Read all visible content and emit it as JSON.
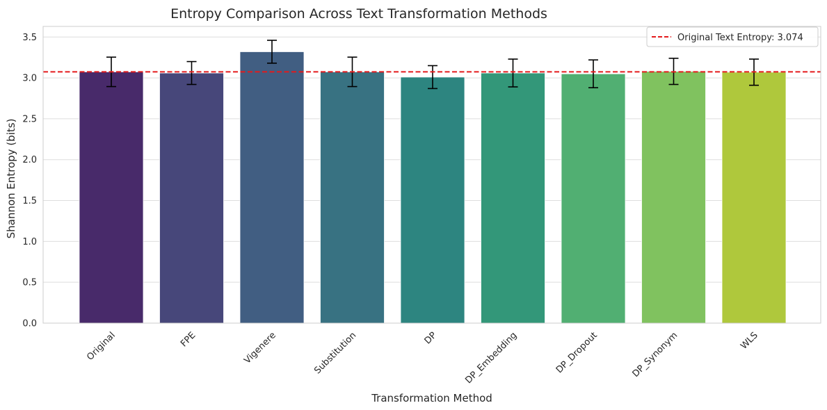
{
  "chart_data": {
    "type": "bar",
    "title": "Entropy Comparison Across Text Transformation Methods",
    "xlabel": "Transformation Method",
    "ylabel": "Shannon Entropy (bits)",
    "ylim": [
      0,
      3.63
    ],
    "yticks": [
      0.0,
      0.5,
      1.0,
      1.5,
      2.0,
      2.5,
      3.0,
      3.5
    ],
    "ytick_labels": [
      "0.0",
      "0.5",
      "1.0",
      "1.5",
      "2.0",
      "2.5",
      "3.0",
      "3.5"
    ],
    "grid": true,
    "categories": [
      "Original",
      "FPE",
      "Vigenere",
      "Substitution",
      "DP",
      "DP_Embedding",
      "DP_Dropout",
      "DP_Synonym",
      "WLS"
    ],
    "values": [
      3.074,
      3.06,
      3.32,
      3.074,
      3.01,
      3.06,
      3.05,
      3.08,
      3.07
    ],
    "errors": [
      0.18,
      0.14,
      0.14,
      0.18,
      0.14,
      0.17,
      0.17,
      0.16,
      0.16
    ],
    "colors": [
      "#482a6a",
      "#47477a",
      "#415e82",
      "#387282",
      "#2d8580",
      "#339779",
      "#51af72",
      "#80c25f",
      "#afc83c"
    ],
    "reference_line": {
      "value": 3.074,
      "label": "Original Text Entropy: 3.074",
      "color": "#e41a1c",
      "style": "dashed"
    },
    "legend_position": "top-right"
  }
}
